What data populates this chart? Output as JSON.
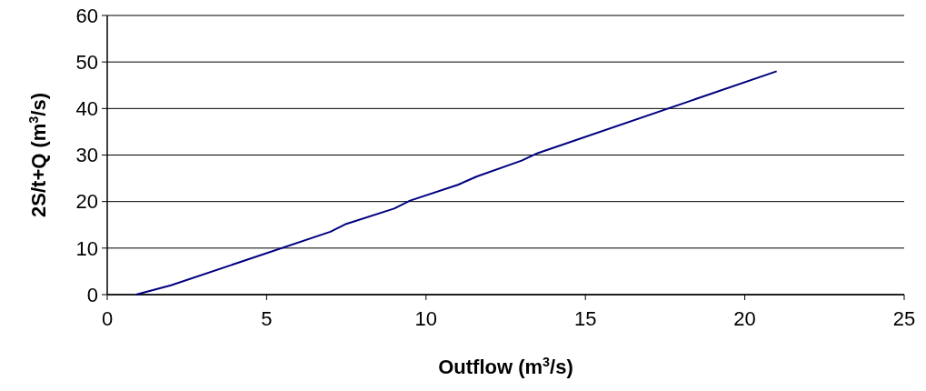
{
  "chart_data": {
    "type": "line",
    "xlabel": "Outflow (m$^{3}$/s)",
    "ylabel": "2S/t+Q (m$^{3}$/s)",
    "x": [
      0.9,
      2,
      7,
      7.5,
      9,
      9.5,
      11,
      11.6,
      13,
      13.5,
      21
    ],
    "series": [
      {
        "color": "#000080",
        "values": [
          0,
          2,
          13.5,
          15.2,
          18.5,
          20.2,
          23.6,
          25.4,
          28.8,
          30.4,
          48
        ]
      }
    ],
    "xlim": [
      0,
      25
    ],
    "xticks": [
      0,
      5,
      10,
      15,
      20,
      25
    ],
    "ylim": [
      0,
      60
    ],
    "yticks": [
      0,
      10,
      20,
      30,
      40,
      50,
      60
    ],
    "grid": "y",
    "marker": "none",
    "line_style": "solid"
  }
}
